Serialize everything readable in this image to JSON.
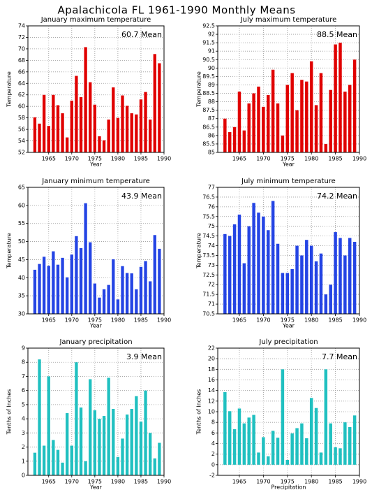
{
  "title": "Apalachicola FL  1961-1990 Monthly Means",
  "chart_data": [
    {
      "type": "bar",
      "title": "January maximum temperature",
      "annotation": "60.7 Mean",
      "xlabel": "Year",
      "ylabel": "Temperature",
      "color": "#e00000",
      "x": [
        1962,
        1963,
        1964,
        1965,
        1966,
        1967,
        1968,
        1969,
        1970,
        1971,
        1972,
        1973,
        1974,
        1975,
        1976,
        1977,
        1978,
        1979,
        1980,
        1981,
        1982,
        1983,
        1984,
        1985,
        1986,
        1987,
        1988,
        1989
      ],
      "values": [
        58.1,
        57.0,
        62.0,
        56.6,
        62.0,
        60.2,
        58.8,
        54.6,
        61.0,
        65.3,
        61.6,
        70.3,
        64.2,
        60.3,
        54.8,
        54.1,
        57.7,
        63.3,
        58.0,
        61.9,
        60.1,
        58.8,
        58.6,
        61.2,
        62.5,
        57.7,
        69.1,
        67.5
      ],
      "xlim": [
        1960.5,
        1990
      ],
      "xticks": [
        1965,
        1970,
        1975,
        1980,
        1985,
        1990
      ],
      "ylim": [
        52,
        74
      ],
      "yticks": [
        52,
        54,
        56,
        58,
        60,
        62,
        64,
        66,
        68,
        70,
        72,
        74
      ],
      "grid": true
    },
    {
      "type": "bar",
      "title": "July maximum temperature",
      "annotation": "88.5 Mean",
      "xlabel": "Year",
      "ylabel": "Temperature",
      "color": "#e00000",
      "x": [
        1962,
        1963,
        1964,
        1965,
        1966,
        1967,
        1968,
        1969,
        1970,
        1971,
        1972,
        1973,
        1974,
        1975,
        1976,
        1977,
        1978,
        1979,
        1980,
        1981,
        1982,
        1983,
        1984,
        1985,
        1986,
        1987,
        1988,
        1989
      ],
      "values": [
        87.0,
        86.2,
        86.5,
        88.6,
        86.3,
        87.9,
        88.5,
        88.9,
        87.7,
        88.4,
        89.9,
        87.9,
        86.0,
        89.0,
        89.7,
        87.5,
        89.3,
        89.2,
        90.4,
        87.8,
        89.7,
        85.5,
        88.7,
        91.4,
        91.5,
        88.6,
        89.0,
        90.5
      ],
      "xlim": [
        1960.5,
        1990
      ],
      "xticks": [
        1965,
        1970,
        1975,
        1980,
        1985,
        1990
      ],
      "ylim": [
        85,
        92.5
      ],
      "yticks": [
        85,
        85.5,
        86,
        86.5,
        87,
        87.5,
        88,
        88.5,
        89,
        89.5,
        90,
        90.5,
        91,
        91.5,
        92,
        92.5
      ],
      "grid": true
    },
    {
      "type": "bar",
      "title": "January minimum temperature",
      "annotation": "43.9 Mean",
      "xlabel": "Year",
      "ylabel": "Temperature",
      "color": "#2444e4",
      "x": [
        1962,
        1963,
        1964,
        1965,
        1966,
        1967,
        1968,
        1969,
        1970,
        1971,
        1972,
        1973,
        1974,
        1975,
        1976,
        1977,
        1978,
        1979,
        1980,
        1981,
        1982,
        1983,
        1984,
        1985,
        1986,
        1987,
        1988,
        1989
      ],
      "values": [
        42.2,
        43.8,
        45.8,
        43.3,
        47.3,
        43.6,
        45.5,
        40.1,
        46.4,
        51.5,
        48.2,
        60.6,
        49.8,
        38.4,
        34.5,
        36.8,
        38.0,
        45.1,
        34.0,
        43.2,
        41.3,
        41.2,
        36.8,
        43.0,
        44.6,
        39.0,
        51.8,
        48.0
      ],
      "xlim": [
        1960.5,
        1990
      ],
      "xticks": [
        1965,
        1970,
        1975,
        1980,
        1985,
        1990
      ],
      "ylim": [
        30,
        65
      ],
      "yticks": [
        30,
        35,
        40,
        45,
        50,
        55,
        60,
        65
      ],
      "grid": true
    },
    {
      "type": "bar",
      "title": "July minimum temperature",
      "annotation": "74.2 Mean",
      "xlabel": "Year",
      "ylabel": "Temperature",
      "color": "#2444e4",
      "x": [
        1962,
        1963,
        1964,
        1965,
        1966,
        1967,
        1968,
        1969,
        1970,
        1971,
        1972,
        1973,
        1974,
        1975,
        1976,
        1977,
        1978,
        1979,
        1980,
        1981,
        1982,
        1983,
        1984,
        1985,
        1986,
        1987,
        1988,
        1989
      ],
      "values": [
        74.6,
        74.5,
        75.1,
        75.6,
        73.1,
        75.0,
        76.2,
        75.7,
        75.5,
        74.8,
        76.3,
        74.1,
        72.6,
        72.6,
        72.8,
        74.0,
        73.5,
        74.3,
        74.0,
        73.2,
        73.6,
        71.5,
        72.0,
        74.7,
        74.4,
        73.5,
        74.4,
        74.2
      ],
      "xlim": [
        1960.5,
        1990
      ],
      "xticks": [
        1965,
        1970,
        1975,
        1980,
        1985,
        1990
      ],
      "ylim": [
        70.5,
        77
      ],
      "yticks": [
        70.5,
        71,
        71.5,
        72,
        72.5,
        73,
        73.5,
        74,
        74.5,
        75,
        75.5,
        76,
        76.5,
        77
      ],
      "grid": true
    },
    {
      "type": "bar",
      "title": "January precipitation",
      "annotation": "3.9  Mean",
      "xlabel": "Year",
      "ylabel": "Tenths of Inches",
      "color": "#20c0c0",
      "x": [
        1962,
        1963,
        1964,
        1965,
        1966,
        1967,
        1968,
        1969,
        1970,
        1971,
        1972,
        1973,
        1974,
        1975,
        1976,
        1977,
        1978,
        1979,
        1980,
        1981,
        1982,
        1983,
        1984,
        1985,
        1986,
        1987,
        1988,
        1989
      ],
      "values": [
        1.6,
        8.2,
        2.1,
        7.0,
        2.5,
        1.8,
        0.9,
        4.4,
        2.1,
        8.0,
        4.8,
        1.0,
        6.8,
        4.6,
        4.0,
        4.2,
        6.9,
        4.7,
        1.3,
        2.6,
        4.3,
        4.7,
        5.6,
        3.8,
        6.0,
        3.0,
        1.2,
        2.3
      ],
      "xlim": [
        1960.5,
        1990
      ],
      "xticks": [
        1965,
        1970,
        1975,
        1980,
        1985,
        1990
      ],
      "ylim": [
        0,
        9
      ],
      "yticks": [
        0,
        1,
        2,
        3,
        4,
        5,
        6,
        7,
        8,
        9
      ],
      "grid": true
    },
    {
      "type": "bar",
      "title": "July precipitation",
      "annotation": "7.7  Mean",
      "xlabel": "Precipitation",
      "ylabel": "Tenths of Inches",
      "color": "#20c0c0",
      "x": [
        1962,
        1963,
        1964,
        1965,
        1966,
        1967,
        1968,
        1969,
        1970,
        1971,
        1972,
        1973,
        1974,
        1975,
        1976,
        1977,
        1978,
        1979,
        1980,
        1981,
        1982,
        1983,
        1984,
        1985,
        1986,
        1987,
        1988,
        1989
      ],
      "values": [
        13.7,
        10.1,
        6.7,
        10.6,
        7.8,
        8.9,
        9.4,
        2.3,
        5.2,
        1.6,
        6.4,
        5.1,
        18.0,
        0.9,
        5.9,
        6.9,
        7.8,
        5.0,
        12.6,
        10.7,
        2.3,
        18.0,
        7.8,
        3.3,
        3.1,
        8.0,
        7.1,
        9.3
      ],
      "xlim": [
        1960.5,
        1990
      ],
      "xticks": [
        1965,
        1970,
        1975,
        1980,
        1985,
        1990
      ],
      "ylim": [
        -2,
        22
      ],
      "yticks": [
        -2,
        0,
        2,
        4,
        6,
        8,
        10,
        12,
        14,
        16,
        18,
        20,
        22
      ],
      "grid": true
    }
  ]
}
